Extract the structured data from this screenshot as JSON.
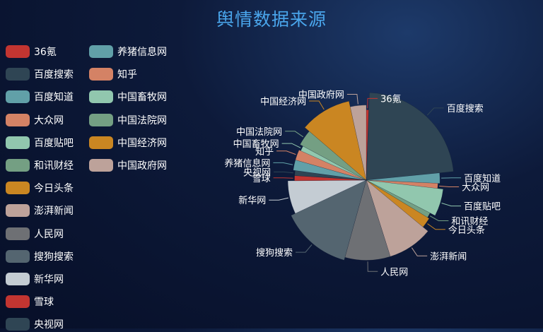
{
  "chart_data": {
    "type": "pie",
    "title": "舆情数据来源",
    "legend_placement": "left",
    "slices": [
      {
        "name": "36氪",
        "value": 0.5,
        "color": "#c23531"
      },
      {
        "name": "百度搜索",
        "value": 20,
        "color": "#2f4554"
      },
      {
        "name": "百度知道",
        "value": 2,
        "color": "#61a0a8"
      },
      {
        "name": "大众网",
        "value": 1,
        "color": "#d48265"
      },
      {
        "name": "百度贴吧",
        "value": 5,
        "color": "#91c7ae"
      },
      {
        "name": "和讯财经",
        "value": 1,
        "color": "#749f83"
      },
      {
        "name": "今日头条",
        "value": 2,
        "color": "#ca8622"
      },
      {
        "name": "澎湃新闻",
        "value": 8,
        "color": "#bda29a"
      },
      {
        "name": "人民网",
        "value": 8,
        "color": "#6e7074"
      },
      {
        "name": "搜狗搜索",
        "value": 12,
        "color": "#546570"
      },
      {
        "name": "新华网",
        "value": 6,
        "color": "#c4ccd3"
      },
      {
        "name": "雪球",
        "value": 1,
        "color": "#c23531"
      },
      {
        "name": "央视网",
        "value": 1,
        "color": "#2f4554"
      },
      {
        "name": "养猪信息网",
        "value": 2,
        "color": "#61a0a8"
      },
      {
        "name": "知乎",
        "value": 2,
        "color": "#d48265"
      },
      {
        "name": "中国畜牧网",
        "value": 1,
        "color": "#91c7ae"
      },
      {
        "name": "中国法院网",
        "value": 3,
        "color": "#749f83"
      },
      {
        "name": "中国经济网",
        "value": 9,
        "color": "#ca8622"
      },
      {
        "name": "中国政府网",
        "value": 3,
        "color": "#bda29a"
      }
    ]
  }
}
